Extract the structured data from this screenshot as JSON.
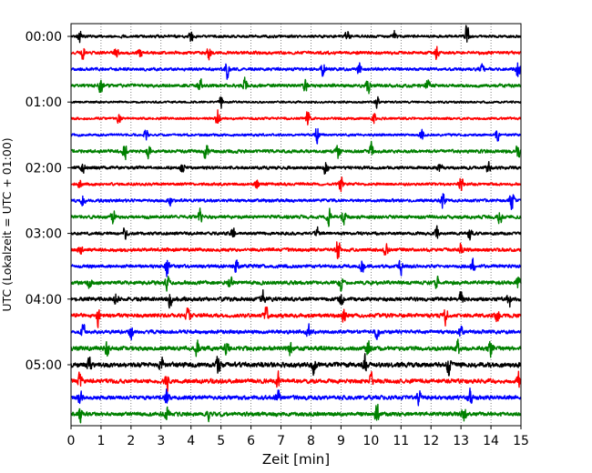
{
  "chart_data": {
    "type": "line",
    "title": "",
    "xlabel": "Zeit  [min]",
    "ylabel": "UTC (Lokalzeit = UTC + 01:00)",
    "xlim": [
      0,
      15
    ],
    "x_ticks": [
      0,
      1,
      2,
      3,
      4,
      5,
      6,
      7,
      8,
      9,
      10,
      11,
      12,
      13,
      14,
      15
    ],
    "x_tick_labels": [
      "0",
      "1",
      "2",
      "3",
      "4",
      "5",
      "6",
      "7",
      "8",
      "9",
      "10",
      "11",
      "12",
      "13",
      "14",
      "15"
    ],
    "y_tick_labels": [
      "00:00",
      "01:00",
      "02:00",
      "03:00",
      "04:00",
      "05:00"
    ],
    "trace_interval_min": 15,
    "trace_color_cycle": [
      "#000000",
      "#ff0000",
      "#0000ff",
      "#008000"
    ],
    "grid": "vertical dotted lines at each minute",
    "series": [
      {
        "start": "00:00",
        "noise": 0.45,
        "events": [
          [
            0.3,
            1.0
          ],
          [
            4.0,
            1.0
          ],
          [
            9.2,
            1.0
          ],
          [
            10.8,
            0.9
          ],
          [
            13.2,
            1.6
          ]
        ]
      },
      {
        "start": "00:15",
        "noise": 0.5,
        "events": [
          [
            0.4,
            1.0
          ],
          [
            1.5,
            0.9
          ],
          [
            2.3,
            0.8
          ],
          [
            4.6,
            1.1
          ],
          [
            12.2,
            1.3
          ]
        ]
      },
      {
        "start": "00:30",
        "noise": 0.5,
        "events": [
          [
            5.2,
            1.3
          ],
          [
            8.4,
            1.0
          ],
          [
            9.6,
            1.1
          ],
          [
            13.7,
            1.0
          ],
          [
            14.9,
            1.7
          ]
        ]
      },
      {
        "start": "00:45",
        "noise": 0.55,
        "events": [
          [
            1.0,
            1.2
          ],
          [
            4.3,
            1.0
          ],
          [
            5.8,
            1.3
          ],
          [
            7.8,
            1.2
          ],
          [
            9.9,
            1.4
          ],
          [
            11.9,
            1.0
          ]
        ]
      },
      {
        "start": "01:00",
        "noise": 0.35,
        "events": [
          [
            5.0,
            0.9
          ],
          [
            10.2,
            0.9
          ]
        ]
      },
      {
        "start": "01:15",
        "noise": 0.4,
        "events": [
          [
            1.6,
            0.9
          ],
          [
            4.9,
            1.5
          ],
          [
            7.9,
            1.2
          ],
          [
            10.1,
            0.8
          ]
        ]
      },
      {
        "start": "01:30",
        "noise": 0.4,
        "events": [
          [
            2.5,
            0.9
          ],
          [
            8.2,
            1.4
          ],
          [
            11.7,
            1.0
          ],
          [
            14.2,
            1.1
          ]
        ]
      },
      {
        "start": "01:45",
        "noise": 0.55,
        "events": [
          [
            1.8,
            1.4
          ],
          [
            2.6,
            1.3
          ],
          [
            4.5,
            1.4
          ],
          [
            8.9,
            1.2
          ],
          [
            10.0,
            1.3
          ],
          [
            14.9,
            1.2
          ]
        ]
      },
      {
        "start": "02:00",
        "noise": 0.5,
        "events": [
          [
            0.4,
            0.9
          ],
          [
            3.7,
            0.9
          ],
          [
            8.5,
            1.3
          ],
          [
            12.3,
            0.9
          ],
          [
            13.9,
            1.0
          ]
        ]
      },
      {
        "start": "02:15",
        "noise": 0.45,
        "events": [
          [
            0.3,
            0.9
          ],
          [
            6.2,
            0.9
          ],
          [
            9.0,
            1.2
          ],
          [
            13.0,
            1.1
          ]
        ]
      },
      {
        "start": "02:30",
        "noise": 0.5,
        "events": [
          [
            0.4,
            1.1
          ],
          [
            3.3,
            1.0
          ],
          [
            12.4,
            1.2
          ],
          [
            14.7,
            1.6
          ]
        ]
      },
      {
        "start": "02:45",
        "noise": 0.55,
        "events": [
          [
            1.4,
            1.1
          ],
          [
            4.3,
            1.0
          ],
          [
            8.6,
            1.3
          ],
          [
            9.1,
            1.1
          ],
          [
            14.3,
            1.2
          ]
        ]
      },
      {
        "start": "03:00",
        "noise": 0.5,
        "events": [
          [
            1.8,
            0.9
          ],
          [
            5.4,
            1.0
          ],
          [
            8.2,
            1.0
          ],
          [
            12.2,
            1.0
          ],
          [
            13.3,
            1.0
          ]
        ]
      },
      {
        "start": "03:15",
        "noise": 0.55,
        "events": [
          [
            0.3,
            0.9
          ],
          [
            8.9,
            1.8
          ],
          [
            10.5,
            1.0
          ],
          [
            13.0,
            1.1
          ]
        ]
      },
      {
        "start": "03:30",
        "noise": 0.55,
        "events": [
          [
            3.2,
            1.3
          ],
          [
            5.5,
            1.2
          ],
          [
            9.7,
            1.0
          ],
          [
            11.0,
            1.0
          ],
          [
            13.4,
            1.2
          ]
        ]
      },
      {
        "start": "03:45",
        "noise": 0.6,
        "events": [
          [
            0.6,
            1.1
          ],
          [
            3.2,
            1.0
          ],
          [
            5.3,
            1.2
          ],
          [
            9.0,
            1.1
          ],
          [
            12.2,
            1.1
          ],
          [
            14.9,
            1.1
          ]
        ]
      },
      {
        "start": "04:00",
        "noise": 0.65,
        "events": [
          [
            1.5,
            1.2
          ],
          [
            3.3,
            1.2
          ],
          [
            6.4,
            1.2
          ],
          [
            9.0,
            1.1
          ],
          [
            13.0,
            1.3
          ],
          [
            14.6,
            1.4
          ]
        ]
      },
      {
        "start": "04:15",
        "noise": 0.65,
        "events": [
          [
            0.9,
            1.3
          ],
          [
            3.9,
            1.1
          ],
          [
            6.5,
            1.2
          ],
          [
            9.1,
            1.2
          ],
          [
            12.5,
            1.3
          ],
          [
            14.2,
            1.1
          ]
        ]
      },
      {
        "start": "04:30",
        "noise": 0.6,
        "events": [
          [
            0.4,
            1.1
          ],
          [
            2.0,
            1.1
          ],
          [
            7.9,
            1.2
          ],
          [
            10.2,
            1.1
          ],
          [
            13.0,
            1.1
          ]
        ]
      },
      {
        "start": "04:45",
        "noise": 0.7,
        "events": [
          [
            1.2,
            1.2
          ],
          [
            4.2,
            1.3
          ],
          [
            5.2,
            1.1
          ],
          [
            7.3,
            1.1
          ],
          [
            9.9,
            1.2
          ],
          [
            12.9,
            1.2
          ],
          [
            14.0,
            1.4
          ]
        ]
      },
      {
        "start": "05:00",
        "noise": 0.8,
        "events": [
          [
            0.6,
            1.2
          ],
          [
            3.0,
            1.2
          ],
          [
            4.9,
            1.3
          ],
          [
            8.1,
            1.2
          ],
          [
            9.8,
            1.4
          ],
          [
            12.6,
            1.3
          ]
        ]
      },
      {
        "start": "05:15",
        "noise": 0.7,
        "events": [
          [
            0.3,
            1.1
          ],
          [
            3.2,
            1.2
          ],
          [
            6.9,
            1.2
          ],
          [
            10.0,
            1.1
          ],
          [
            14.9,
            1.5
          ]
        ]
      },
      {
        "start": "05:30",
        "noise": 0.65,
        "events": [
          [
            0.3,
            1.1
          ],
          [
            3.2,
            1.2
          ],
          [
            6.9,
            1.1
          ],
          [
            11.6,
            1.0
          ],
          [
            13.3,
            1.3
          ]
        ]
      },
      {
        "start": "05:45",
        "noise": 0.65,
        "events": [
          [
            0.3,
            1.1
          ],
          [
            3.2,
            1.1
          ],
          [
            4.6,
            1.1
          ],
          [
            10.2,
            1.6
          ],
          [
            13.1,
            1.1
          ]
        ]
      }
    ]
  }
}
